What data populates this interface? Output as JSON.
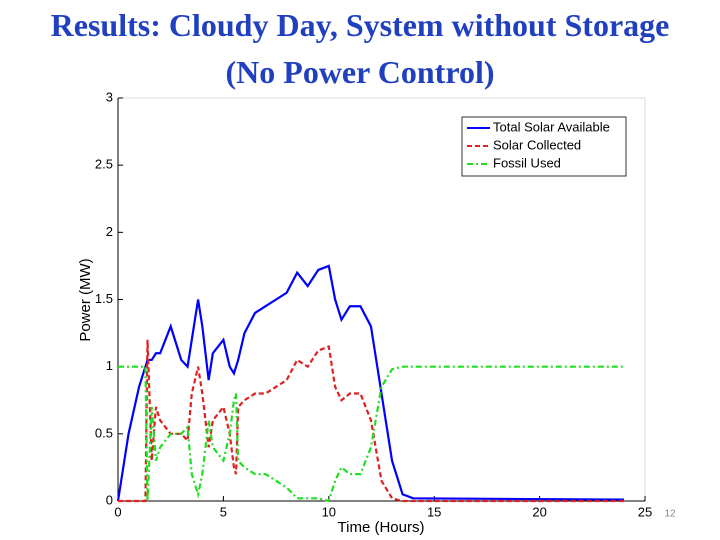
{
  "title": "Results: Cloudy Day, System without Storage (No Power Control)",
  "page_number": "12",
  "chart_data": {
    "type": "line",
    "xlabel": "Time (Hours)",
    "ylabel": "Power (MW)",
    "x": [
      0,
      0.5,
      1,
      1.3,
      1.4,
      1.6,
      1.8,
      2,
      2.5,
      3,
      3.3,
      3.5,
      3.8,
      4,
      4.3,
      4.5,
      5,
      5.3,
      5.5,
      5.6,
      5.7,
      6,
      6.5,
      7,
      7.5,
      8,
      8.5,
      9,
      9.5,
      10,
      10.3,
      10.6,
      11,
      11.5,
      12,
      12.5,
      13,
      13.5,
      14,
      24
    ],
    "series": [
      {
        "name": "Total Solar Available",
        "color": "#0000ff",
        "dash": "solid",
        "values": [
          0,
          0.5,
          0.85,
          1.0,
          1.05,
          1.05,
          1.1,
          1.1,
          1.3,
          1.05,
          1.0,
          1.2,
          1.5,
          1.3,
          0.9,
          1.1,
          1.2,
          1.0,
          0.95,
          1.0,
          1.05,
          1.25,
          1.4,
          1.45,
          1.5,
          1.55,
          1.7,
          1.6,
          1.72,
          1.75,
          1.5,
          1.35,
          1.45,
          1.45,
          1.3,
          0.8,
          0.3,
          0.05,
          0.02,
          0.01
        ]
      },
      {
        "name": "Solar Collected",
        "color": "#e02020",
        "dash": "dashed",
        "values": [
          0,
          0,
          0,
          0,
          1.2,
          0.3,
          0.7,
          0.6,
          0.5,
          0.5,
          0.45,
          0.8,
          1.0,
          0.8,
          0.4,
          0.6,
          0.7,
          0.5,
          0.25,
          0.2,
          0.7,
          0.75,
          0.8,
          0.8,
          0.85,
          0.9,
          1.05,
          1.0,
          1.12,
          1.15,
          0.85,
          0.75,
          0.8,
          0.8,
          0.6,
          0.15,
          0.02,
          0,
          0,
          0
        ]
      },
      {
        "name": "Fossil Used",
        "color": "#22dd22",
        "dash": "dashdot",
        "values": [
          1,
          1,
          1,
          1,
          0,
          0.7,
          0.3,
          0.4,
          0.5,
          0.5,
          0.55,
          0.2,
          0.05,
          0.2,
          0.6,
          0.4,
          0.3,
          0.5,
          0.75,
          0.8,
          0.3,
          0.25,
          0.2,
          0.2,
          0.15,
          0.1,
          0.02,
          0.02,
          0.02,
          0,
          0.15,
          0.25,
          0.2,
          0.2,
          0.4,
          0.85,
          0.98,
          1,
          1,
          1
        ]
      }
    ],
    "xlim": [
      0,
      25
    ],
    "xticks": [
      0,
      5,
      10,
      15,
      20,
      25
    ],
    "ylim": [
      0,
      3
    ],
    "yticks": [
      0,
      0.5,
      1,
      1.5,
      2,
      2.5,
      3
    ],
    "grid": false,
    "legend": "upper-right"
  }
}
